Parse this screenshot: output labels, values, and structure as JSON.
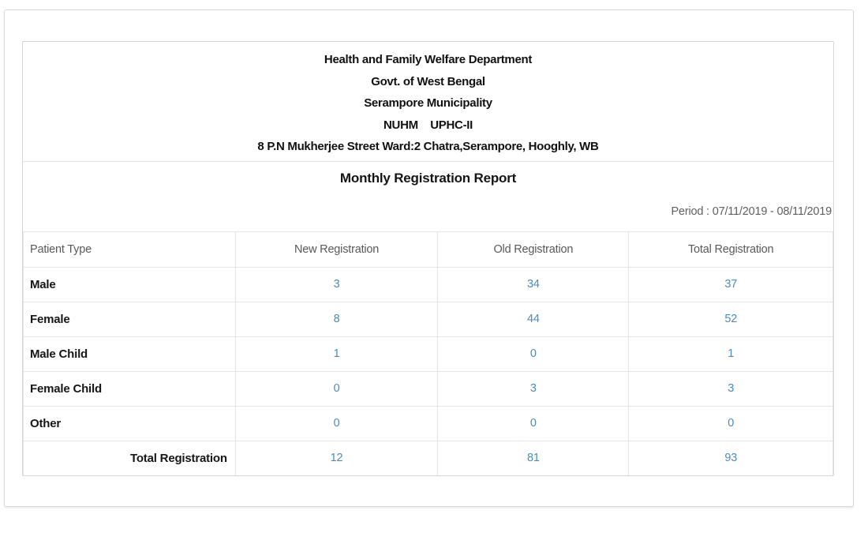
{
  "report": {
    "org_lines": [
      "Health and Family Welfare Department",
      "Govt. of West Bengal",
      "Serampore Municipality",
      "NUHM    UPHC-II",
      "8 P.N Mukherjee Street Ward:2 Chatra,Serampore, Hooghly, WB"
    ],
    "title": "Monthly Registration Report",
    "period_label": "Period : 07/11/2019 - 08/11/2019"
  },
  "table": {
    "columns": [
      "Patient Type",
      "New Registration",
      "Old Registration",
      "Total Registration"
    ],
    "rows": [
      {
        "label": "Male",
        "new": 3,
        "old": 34,
        "total": 37
      },
      {
        "label": "Female",
        "new": 8,
        "old": 44,
        "total": 52
      },
      {
        "label": "Male Child",
        "new": 1,
        "old": 0,
        "total": 1
      },
      {
        "label": "Female Child",
        "new": 0,
        "old": 3,
        "total": 3
      },
      {
        "label": "Other",
        "new": 0,
        "old": 0,
        "total": 0
      }
    ],
    "footer": {
      "label": "Total Registration",
      "new": 12,
      "old": 81,
      "total": 93
    }
  },
  "colors": {
    "value_text": "#4a8cba",
    "header_text": "#58595b",
    "border": "#e5e5e5",
    "frame_border": "#d9d9d9"
  }
}
